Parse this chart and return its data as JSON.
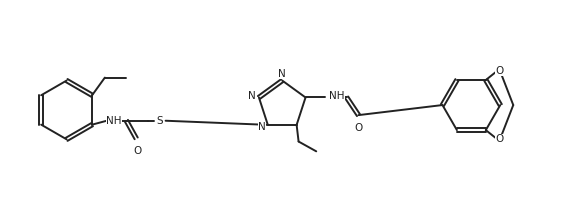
{
  "background_color": "#ffffff",
  "line_color": "#222222",
  "line_width": 1.4,
  "font_size": 7.5,
  "figsize": [
    5.87,
    2.15
  ],
  "dpi": 100,
  "xlim": [
    0,
    5.87
  ],
  "ylim": [
    0,
    2.15
  ]
}
